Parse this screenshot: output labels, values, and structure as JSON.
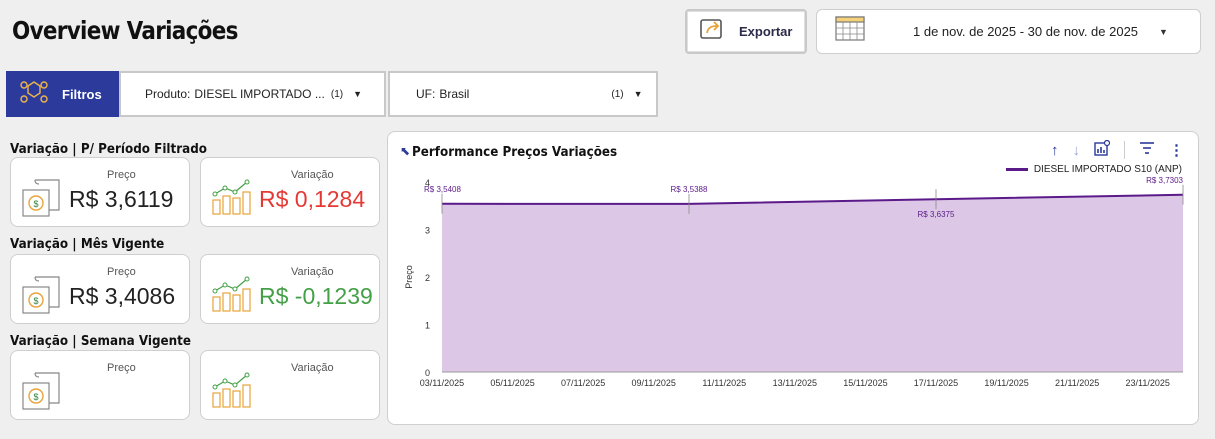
{
  "header": {
    "title": "Overview Variações",
    "export_label": "Exportar",
    "date_range": "1 de nov. de 2025 - 30 de nov. de 2025"
  },
  "filters": {
    "button_label": "Filtros",
    "produto": {
      "label": "Produto:",
      "value": "DIESEL IMPORTADO ...",
      "count": "(1)"
    },
    "uf": {
      "label": "UF:",
      "value": "Brasil",
      "count": "(1)"
    }
  },
  "sections": [
    {
      "title": "Variação | P/ Período Filtrado",
      "price_label": "Preço",
      "price_value": "R$ 3,6119",
      "var_label": "Variação",
      "var_value": "R$ 0,1284",
      "var_color": "#e53935"
    },
    {
      "title": "Variação | Mês Vigente",
      "price_label": "Preço",
      "price_value": "R$ 3,4086",
      "var_label": "Variação",
      "var_value": "R$ -0,1239",
      "var_color": "#43a047"
    },
    {
      "title": "Variação | Semana Vigente",
      "price_label": "Preço",
      "price_value": "",
      "var_label": "Variação",
      "var_value": "",
      "var_color": "#222222"
    }
  ],
  "chart": {
    "title": "Performance Preços Variações"
  },
  "chart_data": {
    "type": "area",
    "title": "Performance Preços Variações",
    "ylabel": "Preço",
    "xlabel": "",
    "ylim": [
      0,
      4
    ],
    "yticks": [
      "0",
      "1",
      "2",
      "3",
      "4"
    ],
    "xticks": [
      "03/11/2025",
      "05/11/2025",
      "07/11/2025",
      "09/11/2025",
      "11/11/2025",
      "13/11/2025",
      "15/11/2025",
      "17/11/2025",
      "19/11/2025",
      "21/11/2025",
      "23/11/2025"
    ],
    "x_start_day": 3,
    "x_end_day": 24,
    "series": [
      {
        "name": "DIESEL IMPORTADO S10 (ANP)",
        "color": "#5b1a8a",
        "fill": "#dcc8e6",
        "points": [
          {
            "day": 3,
            "y": 3.5408,
            "label": "R$ 3,5408"
          },
          {
            "day": 10,
            "y": 3.5388,
            "label": "R$ 3,5388"
          },
          {
            "day": 17,
            "y": 3.6375,
            "label": "R$ 3,6375"
          },
          {
            "day": 24,
            "y": 3.7303,
            "label": "R$ 3,7303"
          }
        ]
      }
    ],
    "legend": "top-right",
    "grid": false
  }
}
